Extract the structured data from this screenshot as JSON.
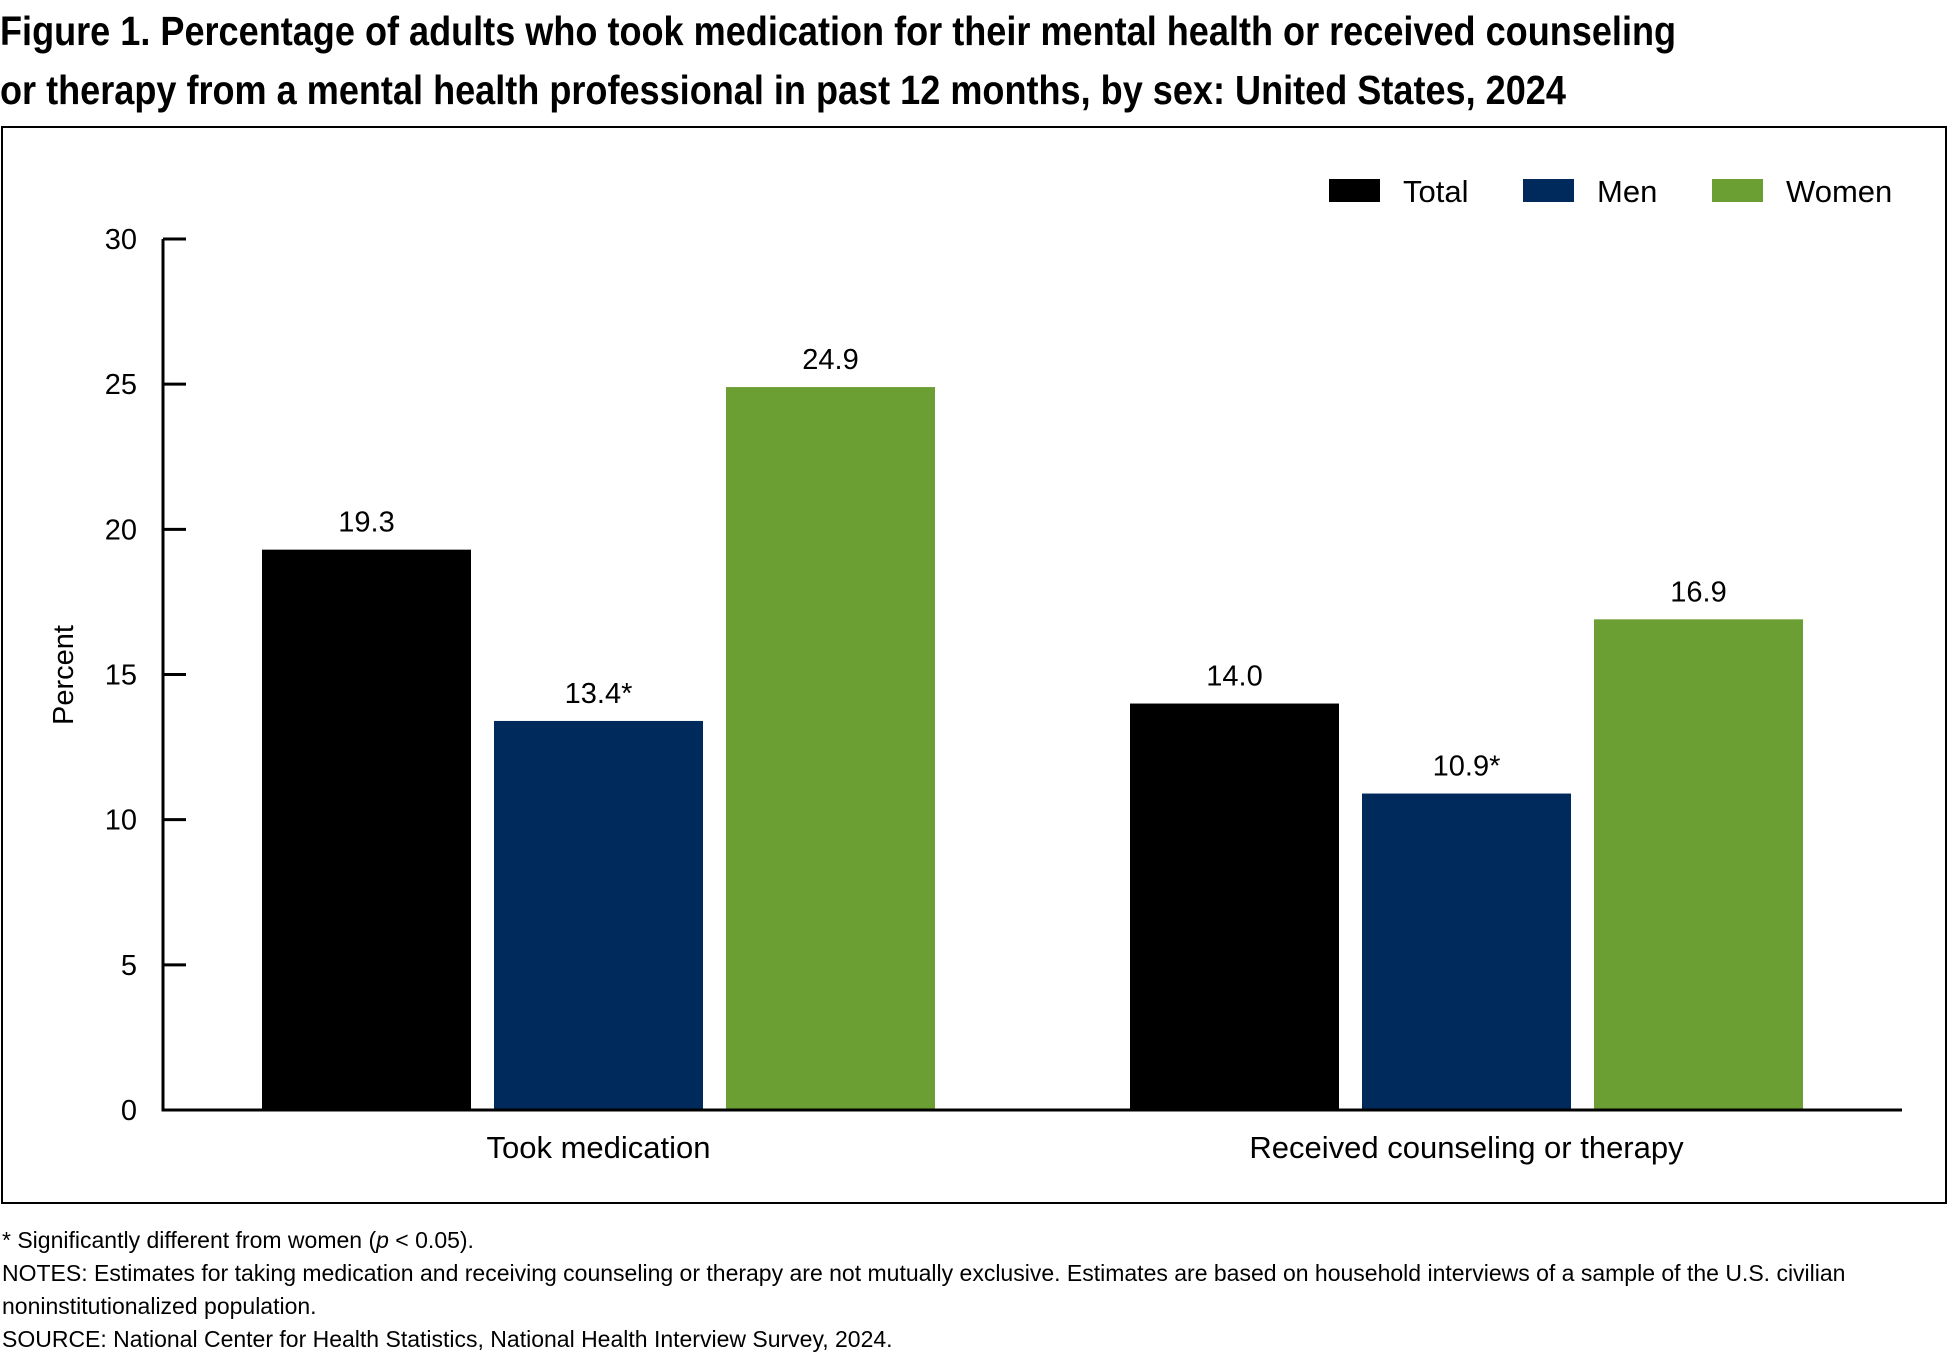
{
  "figure": {
    "title_line1": "Figure 1. Percentage of adults who took medication for their mental health or received counseling",
    "title_line2": "or therapy from a mental health professional in past 12 months, by sex: United States, 2024"
  },
  "chart_data": {
    "type": "bar",
    "ylabel": "Percent",
    "xlabel": "",
    "ylim": [
      0,
      30
    ],
    "yticks": [
      0,
      5,
      10,
      15,
      20,
      25,
      30
    ],
    "grid": false,
    "legend_position": "top-right",
    "categories": [
      "Took medication",
      "Received counseling or therapy"
    ],
    "series": [
      {
        "name": "Total",
        "color": "#000000",
        "values": [
          19.3,
          14.0
        ],
        "labels": [
          "19.3",
          "14.0"
        ]
      },
      {
        "name": "Men",
        "color": "#002a5c",
        "values": [
          13.4,
          10.9
        ],
        "labels": [
          "13.4*",
          "10.9*"
        ]
      },
      {
        "name": "Women",
        "color": "#6b9e33",
        "values": [
          24.9,
          16.9
        ],
        "labels": [
          "24.9",
          "16.9"
        ]
      }
    ]
  },
  "notes": {
    "significance_prefix": "* Significantly different from women (",
    "significance_p": "p",
    "significance_suffix": " < 0.05).",
    "notes_text": "NOTES: Estimates for taking medication and receiving counseling or therapy are not mutually exclusive. Estimates are based on household interviews of a sample of the U.S. civilian noninstitutionalized population.",
    "source_text": "SOURCE: National Center for Health Statistics, National Health Interview Survey, 2024."
  }
}
